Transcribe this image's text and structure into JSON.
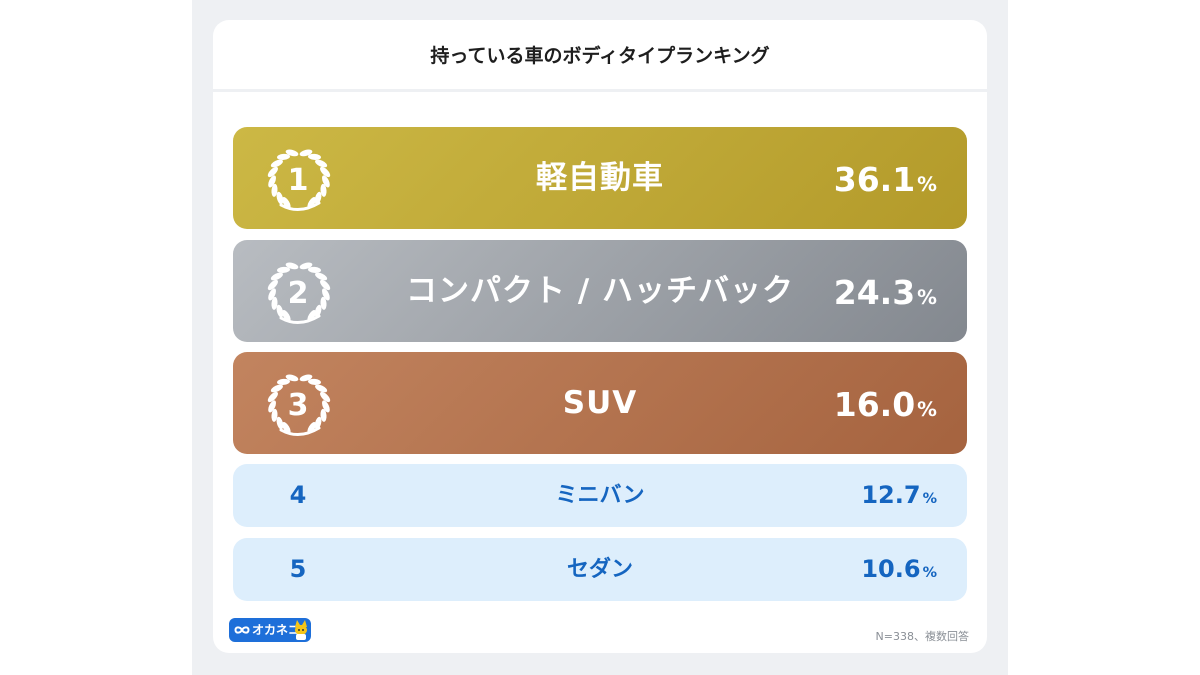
{
  "title": "持っている車のボディタイプランキング",
  "chart_data": {
    "type": "table",
    "title": "持っている車のボディタイプランキング",
    "rows": [
      {
        "rank": "1",
        "label": "軽自動車",
        "value": 36.1,
        "value_text": "36.1",
        "unit": "%"
      },
      {
        "rank": "2",
        "label": "コンパクト / ハッチバック",
        "value": 24.3,
        "value_text": "24.3",
        "unit": "%"
      },
      {
        "rank": "3",
        "label": "SUV",
        "value": 16.0,
        "value_text": "16.0",
        "unit": "%"
      },
      {
        "rank": "4",
        "label": "ミニバン",
        "value": 12.7,
        "value_text": "12.7",
        "unit": "%"
      },
      {
        "rank": "5",
        "label": "セダン",
        "value": 10.6,
        "value_text": "10.6",
        "unit": "%"
      }
    ]
  },
  "colors": {
    "gold": [
      "#ccb845",
      "#b39a2a"
    ],
    "silver": [
      "#b8bcc1",
      "#83888f"
    ],
    "bronze": [
      "#c2845f",
      "#a5633f"
    ],
    "light_row": "#ddeefc",
    "accent_blue": "#1565c0"
  },
  "footer": {
    "logo_text": "オカネコ",
    "note": "N=338、複数回答"
  },
  "icons": {
    "top_rank_badge": "laurel-wreath-icon",
    "logo_left": "infinity-icon",
    "logo_right": "cat-mascot-icon"
  }
}
